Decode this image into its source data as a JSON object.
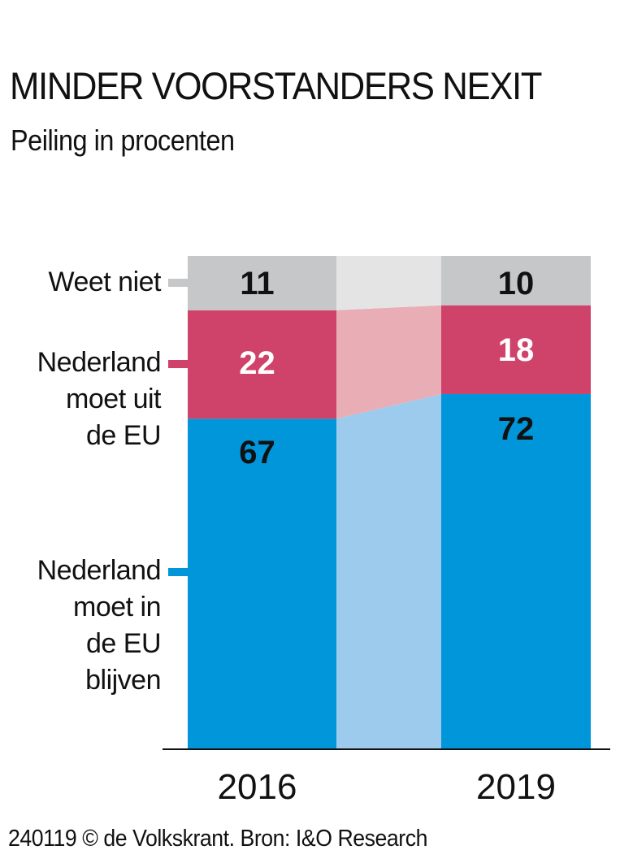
{
  "chart_data": {
    "type": "bar",
    "stacked": true,
    "title": "MINDER VOORSTANDERS NEXIT",
    "subtitle": "Peiling in procenten",
    "categories": [
      "2016",
      "2019"
    ],
    "ylim": [
      0,
      100
    ],
    "series": [
      {
        "name": "Nederland moet in de EU blijven",
        "label_lines": [
          "Nederland",
          "moet in",
          "de EU",
          "blijven"
        ],
        "values": [
          67,
          72
        ],
        "color": "#0096d9",
        "band_color": "#9ccbed",
        "text_color": "#111111"
      },
      {
        "name": "Nederland moet uit de EU",
        "label_lines": [
          "Nederland",
          "moet uit",
          "de EU"
        ],
        "values": [
          22,
          18
        ],
        "color": "#cf426a",
        "band_color": "#e9adb6",
        "text_color": "#ffffff"
      },
      {
        "name": "Weet niet",
        "label_lines": [
          "Weet niet"
        ],
        "values": [
          11,
          10
        ],
        "color": "#c6c7c9",
        "band_color": "#e4e4e5",
        "text_color": "#111111"
      }
    ]
  },
  "footer": "240119 © de Volkskrant. Bron: I&O Research"
}
